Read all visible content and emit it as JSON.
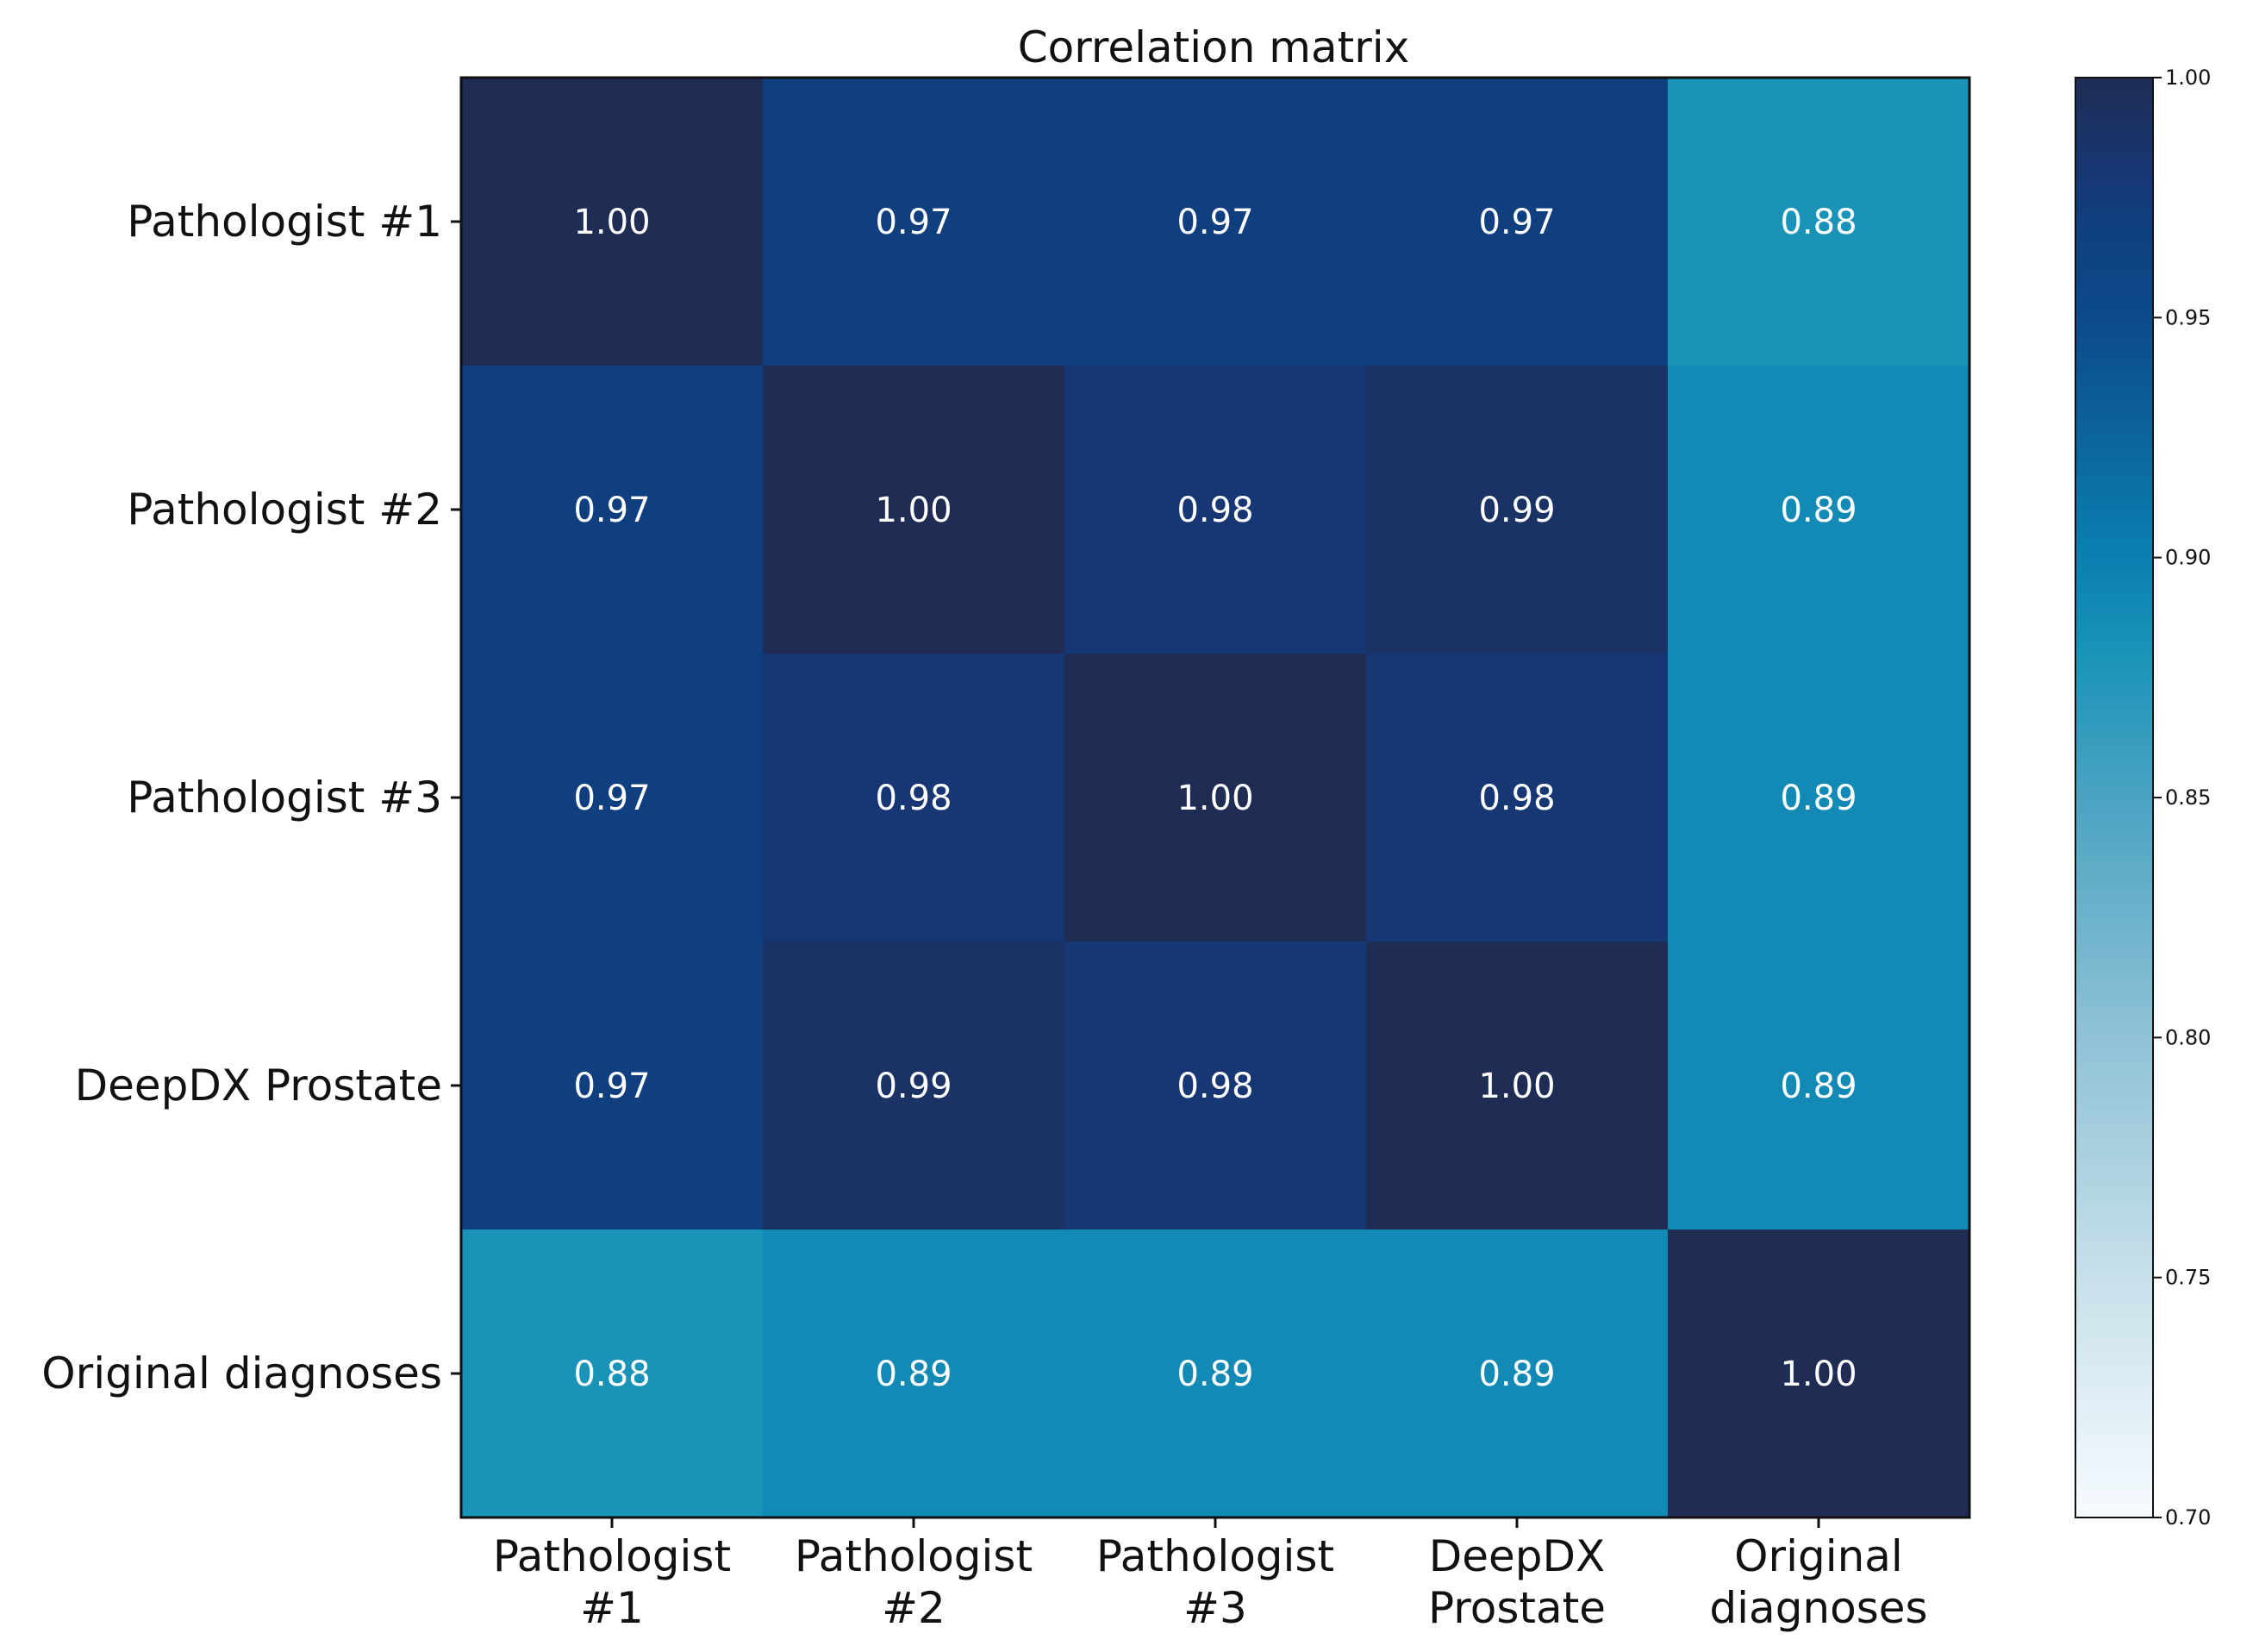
{
  "chart_data": {
    "type": "heatmap",
    "title": "Correlation matrix",
    "row_labels": [
      "Pathologist #1",
      "Pathologist #2",
      "Pathologist #3",
      "DeepDX Prostate",
      "Original diagnoses"
    ],
    "col_labels": [
      [
        "Pathologist",
        "#1"
      ],
      [
        "Pathologist",
        "#2"
      ],
      [
        "Pathologist",
        "#3"
      ],
      [
        "DeepDX",
        "Prostate"
      ],
      [
        "Original",
        "diagnoses"
      ]
    ],
    "values": [
      [
        1.0,
        0.97,
        0.97,
        0.97,
        0.88
      ],
      [
        0.97,
        1.0,
        0.98,
        0.99,
        0.89
      ],
      [
        0.97,
        0.98,
        1.0,
        0.98,
        0.89
      ],
      [
        0.97,
        0.99,
        0.98,
        1.0,
        0.89
      ],
      [
        0.88,
        0.89,
        0.89,
        0.89,
        1.0
      ]
    ],
    "value_labels": [
      [
        "1.00",
        "0.97",
        "0.97",
        "0.97",
        "0.88"
      ],
      [
        "0.97",
        "1.00",
        "0.98",
        "0.99",
        "0.89"
      ],
      [
        "0.97",
        "0.98",
        "1.00",
        "0.98",
        "0.89"
      ],
      [
        "0.97",
        "0.99",
        "0.98",
        "1.00",
        "0.89"
      ],
      [
        "0.88",
        "0.89",
        "0.89",
        "0.89",
        "1.00"
      ]
    ],
    "colorbar": {
      "min": 0.7,
      "max": 1.0,
      "ticks": [
        0.7,
        0.75,
        0.8,
        0.85,
        0.9,
        0.95,
        1.0
      ],
      "tick_labels": [
        "0.70",
        "0.75",
        "0.80",
        "0.85",
        "0.90",
        "0.95",
        "1.00"
      ]
    },
    "colormap": "Blues",
    "colormap_stops": [
      {
        "v": 0.7,
        "color": "#f7fbff"
      },
      {
        "v": 0.75,
        "color": "#c7e0ea"
      },
      {
        "v": 0.8,
        "color": "#8fc2d6"
      },
      {
        "v": 0.85,
        "color": "#4aa3c2"
      },
      {
        "v": 0.88,
        "color": "#1a93b9"
      },
      {
        "v": 0.9,
        "color": "#0b7fb0"
      },
      {
        "v": 0.95,
        "color": "#0c4a8a"
      },
      {
        "v": 0.97,
        "color": "#0f3f7f"
      },
      {
        "v": 0.98,
        "color": "#173774"
      },
      {
        "v": 1.0,
        "color": "#1f2d55"
      }
    ]
  }
}
